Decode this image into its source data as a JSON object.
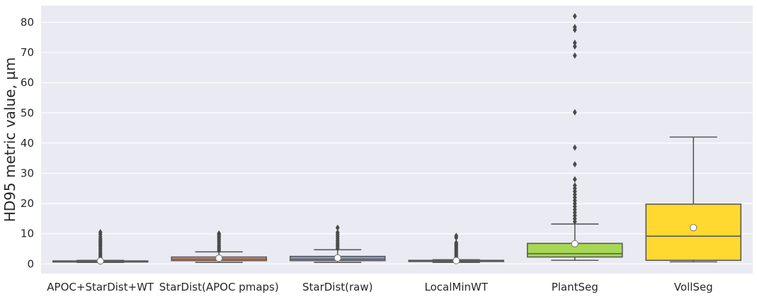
{
  "chart_data": {
    "type": "box",
    "title": "",
    "xlabel": "",
    "ylabel": "HD95 metric value, µm",
    "ylim": [
      -3.2,
      85.5
    ],
    "yticks": [
      0,
      10,
      20,
      30,
      40,
      50,
      60,
      70,
      80
    ],
    "grid": true,
    "background": "#eaeaf2",
    "mean_marker_color": "#ffffff",
    "categories": [
      "APOC+StarDist+WT",
      "StarDist(APOC pmaps)",
      "StarDist(raw)",
      "LocalMinWT",
      "PlantSeg",
      "VollSeg"
    ],
    "boxes": [
      {
        "label": "APOC+StarDist+WT",
        "color": "#66c2a5",
        "whisker_low": 0.5,
        "q1": 0.7,
        "median": 0.85,
        "q3": 1.0,
        "whisker_high": 1.2,
        "mean": 1.0,
        "outliers": [
          1.6,
          2.0,
          2.4,
          2.9,
          3.4,
          4.0,
          4.6,
          5.2,
          5.8,
          6.3,
          6.8,
          7.3,
          7.8,
          8.3,
          9.0,
          9.8,
          10.5
        ]
      },
      {
        "label": "StarDist(APOC pmaps)",
        "color": "#fc8d62",
        "whisker_low": 0.5,
        "q1": 1.1,
        "median": 1.6,
        "q3": 2.3,
        "whisker_high": 4.0,
        "mean": 1.9,
        "outliers": [
          4.5,
          5.0,
          5.6,
          6.2,
          6.9,
          7.5,
          8.1,
          8.7,
          9.2,
          9.7,
          10.1
        ]
      },
      {
        "label": "StarDist(raw)",
        "color": "#8da0cb",
        "whisker_low": 0.5,
        "q1": 1.1,
        "median": 1.6,
        "q3": 2.5,
        "whisker_high": 4.7,
        "mean": 2.0,
        "outliers": [
          5.2,
          5.8,
          6.4,
          7.0,
          7.7,
          8.4,
          9.1,
          9.8,
          10.4,
          12.0
        ]
      },
      {
        "label": "LocalMinWT",
        "color": "#e78ac3",
        "whisker_low": 0.5,
        "q1": 0.8,
        "median": 1.0,
        "q3": 1.2,
        "whisker_high": 1.4,
        "mean": 1.1,
        "outliers": [
          1.8,
          2.2,
          2.7,
          3.2,
          3.7,
          4.2,
          4.7,
          5.2,
          5.7,
          6.2,
          6.6,
          7.0,
          8.7,
          9.3
        ]
      },
      {
        "label": "PlantSeg",
        "color": "#a6d854",
        "whisker_low": 1.2,
        "q1": 2.3,
        "median": 3.4,
        "q3": 6.8,
        "whisker_high": 13.2,
        "mean": 6.7,
        "outliers": [
          14.0,
          15.0,
          16.0,
          17.0,
          18.0,
          19.0,
          20.0,
          21.0,
          22.0,
          23.0,
          24.0,
          25.0,
          26.0,
          28.0,
          33.0,
          38.5,
          50.2,
          69.0,
          72.0,
          73.2,
          77.5,
          78.4,
          82.0
        ]
      },
      {
        "label": "VollSeg",
        "color": "#ffd92f",
        "whisker_low": 0.7,
        "q1": 1.2,
        "median": 9.2,
        "q3": 19.8,
        "whisker_high": 42.0,
        "mean": 12.0,
        "outliers": []
      }
    ]
  }
}
